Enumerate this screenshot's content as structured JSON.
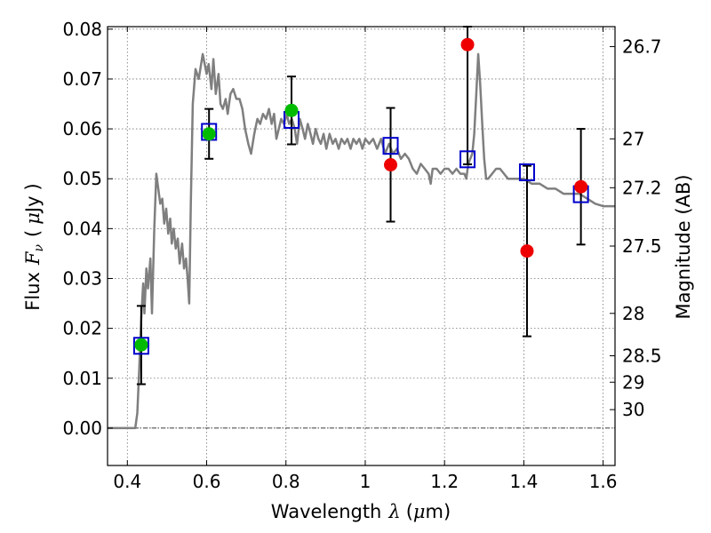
{
  "chart_data": {
    "type": "scatter",
    "xlabel": "Wavelength",
    "xlabel_symbol": "λ",
    "xlabel_unit_open": "(",
    "xlabel_unit_mu": "μ",
    "xlabel_unit_rest": "m)",
    "ylabel": "Flux",
    "ylabel_symbol": "F",
    "ylabel_symbol_sub": "ν",
    "ylabel_unit_open": "(",
    "ylabel_unit_mu": "μ",
    "ylabel_unit_rest": "Jy",
    "ylabel_unit_close": ")",
    "y2label": "Magnitude (AB)",
    "xlim": [
      0.35,
      1.63
    ],
    "ylim": [
      -0.0075,
      0.0805
    ],
    "grid": true,
    "xticks": [
      {
        "value": 0.4,
        "label": "0.4"
      },
      {
        "value": 0.6,
        "label": "0.6"
      },
      {
        "value": 0.8,
        "label": "0.8"
      },
      {
        "value": 1.0,
        "label": "1"
      },
      {
        "value": 1.2,
        "label": "1.2"
      },
      {
        "value": 1.4,
        "label": "1.4"
      },
      {
        "value": 1.6,
        "label": "1.6"
      }
    ],
    "yticks": [
      {
        "value": 0.0,
        "label": "0.00"
      },
      {
        "value": 0.01,
        "label": "0.01"
      },
      {
        "value": 0.02,
        "label": "0.02"
      },
      {
        "value": 0.03,
        "label": "0.03"
      },
      {
        "value": 0.04,
        "label": "0.04"
      },
      {
        "value": 0.05,
        "label": "0.05"
      },
      {
        "value": 0.06,
        "label": "0.06"
      },
      {
        "value": 0.07,
        "label": "0.07"
      },
      {
        "value": 0.08,
        "label": "0.08"
      }
    ],
    "y2ticks": [
      {
        "label": "26.7",
        "flux": 0.0765
      },
      {
        "label": "27",
        "flux": 0.058
      },
      {
        "label": "27.2",
        "flux": 0.0482
      },
      {
        "label": "27.5",
        "flux": 0.0365
      },
      {
        "label": "28",
        "flux": 0.023
      },
      {
        "label": "28.5",
        "flux": 0.0145
      },
      {
        "label": "29",
        "flux": 0.0092
      },
      {
        "label": "30",
        "flux": 0.0037
      }
    ],
    "model_spectrum": [
      [
        0.35,
        0.0
      ],
      [
        0.42,
        0.0
      ],
      [
        0.425,
        0.003
      ],
      [
        0.43,
        0.012
      ],
      [
        0.435,
        0.022
      ],
      [
        0.44,
        0.029
      ],
      [
        0.443,
        0.023
      ],
      [
        0.448,
        0.032
      ],
      [
        0.452,
        0.028
      ],
      [
        0.458,
        0.034
      ],
      [
        0.462,
        0.023
      ],
      [
        0.468,
        0.04
      ],
      [
        0.473,
        0.051
      ],
      [
        0.478,
        0.048
      ],
      [
        0.483,
        0.045
      ],
      [
        0.488,
        0.046
      ],
      [
        0.493,
        0.041
      ],
      [
        0.498,
        0.044
      ],
      [
        0.503,
        0.039
      ],
      [
        0.508,
        0.042
      ],
      [
        0.512,
        0.037
      ],
      [
        0.517,
        0.04
      ],
      [
        0.522,
        0.036
      ],
      [
        0.527,
        0.038
      ],
      [
        0.532,
        0.033
      ],
      [
        0.538,
        0.037
      ],
      [
        0.543,
        0.032
      ],
      [
        0.548,
        0.034
      ],
      [
        0.552,
        0.03
      ],
      [
        0.556,
        0.025
      ],
      [
        0.56,
        0.045
      ],
      [
        0.565,
        0.065
      ],
      [
        0.572,
        0.072
      ],
      [
        0.58,
        0.07
      ],
      [
        0.59,
        0.075
      ],
      [
        0.6,
        0.071
      ],
      [
        0.605,
        0.073
      ],
      [
        0.612,
        0.068
      ],
      [
        0.617,
        0.074
      ],
      [
        0.623,
        0.067
      ],
      [
        0.63,
        0.071
      ],
      [
        0.635,
        0.065
      ],
      [
        0.641,
        0.064
      ],
      [
        0.648,
        0.066
      ],
      [
        0.653,
        0.063
      ],
      [
        0.66,
        0.067
      ],
      [
        0.667,
        0.068
      ],
      [
        0.675,
        0.066
      ],
      [
        0.683,
        0.066
      ],
      [
        0.69,
        0.064
      ],
      [
        0.697,
        0.06
      ],
      [
        0.705,
        0.057
      ],
      [
        0.712,
        0.055
      ],
      [
        0.72,
        0.059
      ],
      [
        0.728,
        0.062
      ],
      [
        0.735,
        0.061
      ],
      [
        0.742,
        0.063
      ],
      [
        0.75,
        0.062
      ],
      [
        0.757,
        0.064
      ],
      [
        0.764,
        0.061
      ],
      [
        0.77,
        0.063
      ],
      [
        0.776,
        0.058
      ],
      [
        0.782,
        0.06
      ],
      [
        0.788,
        0.062
      ],
      [
        0.795,
        0.061
      ],
      [
        0.802,
        0.063
      ],
      [
        0.808,
        0.061
      ],
      [
        0.815,
        0.062
      ],
      [
        0.822,
        0.06
      ],
      [
        0.828,
        0.057
      ],
      [
        0.835,
        0.062
      ],
      [
        0.842,
        0.06
      ],
      [
        0.848,
        0.058
      ],
      [
        0.855,
        0.061
      ],
      [
        0.862,
        0.059
      ],
      [
        0.868,
        0.057
      ],
      [
        0.875,
        0.06
      ],
      [
        0.882,
        0.058
      ],
      [
        0.888,
        0.057
      ],
      [
        0.895,
        0.059
      ],
      [
        0.902,
        0.056
      ],
      [
        0.91,
        0.059
      ],
      [
        0.918,
        0.057
      ],
      [
        0.925,
        0.058
      ],
      [
        0.933,
        0.056
      ],
      [
        0.94,
        0.058
      ],
      [
        0.948,
        0.057
      ],
      [
        0.955,
        0.058
      ],
      [
        0.963,
        0.056
      ],
      [
        0.97,
        0.058
      ],
      [
        0.978,
        0.057
      ],
      [
        0.985,
        0.058
      ],
      [
        0.993,
        0.056
      ],
      [
        1.0,
        0.058
      ],
      [
        1.01,
        0.057
      ],
      [
        1.02,
        0.058
      ],
      [
        1.03,
        0.056
      ],
      [
        1.04,
        0.058
      ],
      [
        1.05,
        0.055
      ],
      [
        1.06,
        0.057
      ],
      [
        1.07,
        0.055
      ],
      [
        1.08,
        0.056
      ],
      [
        1.09,
        0.054
      ],
      [
        1.1,
        0.055
      ],
      [
        1.11,
        0.054
      ],
      [
        1.12,
        0.052
      ],
      [
        1.13,
        0.051
      ],
      [
        1.14,
        0.053
      ],
      [
        1.15,
        0.052
      ],
      [
        1.16,
        0.051
      ],
      [
        1.165,
        0.049
      ],
      [
        1.17,
        0.052
      ],
      [
        1.18,
        0.052
      ],
      [
        1.19,
        0.051
      ],
      [
        1.2,
        0.052
      ],
      [
        1.21,
        0.052
      ],
      [
        1.22,
        0.051
      ],
      [
        1.23,
        0.052
      ],
      [
        1.24,
        0.051
      ],
      [
        1.25,
        0.051
      ],
      [
        1.255,
        0.05
      ],
      [
        1.26,
        0.053
      ],
      [
        1.27,
        0.055
      ],
      [
        1.275,
        0.059
      ],
      [
        1.28,
        0.067
      ],
      [
        1.285,
        0.075
      ],
      [
        1.29,
        0.069
      ],
      [
        1.295,
        0.061
      ],
      [
        1.3,
        0.054
      ],
      [
        1.305,
        0.05
      ],
      [
        1.31,
        0.05
      ],
      [
        1.32,
        0.051
      ],
      [
        1.33,
        0.052
      ],
      [
        1.34,
        0.052
      ],
      [
        1.35,
        0.051
      ],
      [
        1.36,
        0.05
      ],
      [
        1.38,
        0.05
      ],
      [
        1.4,
        0.05
      ],
      [
        1.42,
        0.049
      ],
      [
        1.44,
        0.049
      ],
      [
        1.46,
        0.048
      ],
      [
        1.48,
        0.048
      ],
      [
        1.5,
        0.047
      ],
      [
        1.52,
        0.047
      ],
      [
        1.54,
        0.047
      ],
      [
        1.56,
        0.046
      ],
      [
        1.58,
        0.045
      ],
      [
        1.6,
        0.0445
      ],
      [
        1.63,
        0.0445
      ]
    ],
    "model_bandpass": [
      {
        "x": 0.435,
        "y": 0.0165
      },
      {
        "x": 0.606,
        "y": 0.0594
      },
      {
        "x": 0.814,
        "y": 0.0618
      },
      {
        "x": 1.064,
        "y": 0.0566
      },
      {
        "x": 1.258,
        "y": 0.0539
      },
      {
        "x": 1.408,
        "y": 0.0513
      },
      {
        "x": 1.544,
        "y": 0.0469
      }
    ],
    "detections": [
      {
        "x": 0.435,
        "y": 0.0167,
        "yerr_lo": 0.0079,
        "yerr_hi": 0.0078
      },
      {
        "x": 0.606,
        "y": 0.059,
        "yerr_lo": 0.005,
        "yerr_hi": 0.005
      },
      {
        "x": 0.814,
        "y": 0.0637,
        "yerr_lo": 0.0068,
        "yerr_hi": 0.0068
      }
    ],
    "nondetections": [
      {
        "x": 1.064,
        "y": 0.0528,
        "yerr_lo": 0.0114,
        "yerr_hi": 0.0114
      },
      {
        "x": 1.258,
        "y": 0.0769,
        "yerr_lo": 0.024,
        "yerr_hi": 0.0036
      },
      {
        "x": 1.408,
        "y": 0.0355,
        "yerr_lo": 0.0171,
        "yerr_hi": 0.0171
      },
      {
        "x": 1.544,
        "y": 0.0484,
        "yerr_lo": 0.0116,
        "yerr_hi": 0.0116
      }
    ],
    "colors": {
      "model_spectrum": "#7f7f7f",
      "model_bandpass": "#0000cc",
      "detection": "#00bb00",
      "nondetection": "#ee0000",
      "errorbar": "#000000"
    }
  }
}
